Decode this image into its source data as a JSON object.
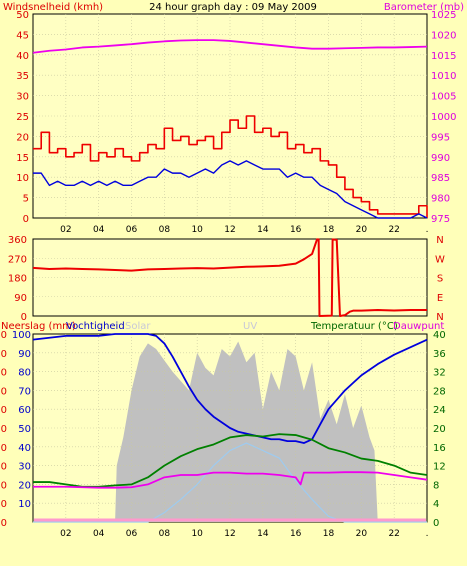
{
  "colors": {
    "background": "#ffffb9",
    "plot_bg": "#ffffc3",
    "grid": "#c8c8a0",
    "wind": "#ee0000",
    "gust": "#0000dd",
    "barometer": "#ee00ee",
    "direction": "#ee0000",
    "humidity": "#0000dd",
    "solar": "#c0c0c0",
    "uv": "#9ecbf0",
    "temperature": "#008000",
    "dewpoint": "#ee00ee",
    "rain": "#ff99cc",
    "text_red": "#dd0000",
    "text_blue": "#0000cc",
    "text_green": "#006600",
    "text_magenta": "#dd00dd",
    "text_dark": "#000000",
    "text_faint": "#c8c8d8"
  },
  "chart_data": [
    {
      "type": "line",
      "title": "24 hour graph day : 09 May 2009",
      "ylabel": "Windsnelheid (kmh)",
      "y2label": "Barometer (mb)",
      "ylim": [
        0,
        50
      ],
      "y2lim": [
        975,
        1025
      ],
      "yticks": [
        "0",
        "5",
        "10",
        "15",
        "20",
        "25",
        "30",
        "35",
        "40",
        "45",
        "50"
      ],
      "y2ticks": [
        "975",
        "980",
        "985",
        "990",
        "995",
        "1000",
        "1005",
        "1010",
        "1015",
        "1020",
        "1025"
      ],
      "xlim": [
        0,
        24
      ],
      "xticks": [
        "02",
        "04",
        "06",
        "08",
        "10",
        "12",
        "14",
        "16",
        "18",
        "20",
        "22",
        "."
      ],
      "grid": true,
      "series": [
        {
          "key": "wind",
          "axis": "left",
          "step": true,
          "x": [
            0,
            0.5,
            1,
            1.5,
            2,
            2.5,
            3,
            3.5,
            4,
            4.5,
            5,
            5.5,
            6,
            6.5,
            7,
            7.5,
            8,
            8.5,
            9,
            9.5,
            10,
            10.5,
            11,
            11.5,
            12,
            12.5,
            13,
            13.5,
            14,
            14.5,
            15,
            15.5,
            16,
            16.5,
            17,
            17.5,
            18,
            18.5,
            19,
            19.5,
            20,
            20.5,
            21,
            21.5,
            22,
            22.5,
            23,
            23.5,
            24
          ],
          "y": [
            17,
            21,
            16,
            17,
            15,
            16,
            18,
            14,
            16,
            15,
            17,
            15,
            14,
            16,
            18,
            17,
            22,
            19,
            20,
            18,
            19,
            20,
            17,
            21,
            24,
            22,
            25,
            21,
            22,
            20,
            21,
            17,
            18,
            16,
            17,
            14,
            13,
            10,
            7,
            5,
            4,
            2,
            1,
            1,
            1,
            1,
            1,
            3,
            0
          ]
        },
        {
          "key": "gust",
          "axis": "left",
          "x": [
            0,
            0.5,
            1,
            1.5,
            2,
            2.5,
            3,
            3.5,
            4,
            4.5,
            5,
            5.5,
            6,
            6.5,
            7,
            7.5,
            8,
            8.5,
            9,
            9.5,
            10,
            10.5,
            11,
            11.5,
            12,
            12.5,
            13,
            13.5,
            14,
            14.5,
            15,
            15.5,
            16,
            16.5,
            17,
            17.5,
            18,
            18.5,
            19,
            19.5,
            20,
            20.5,
            21,
            21.5,
            22,
            22.5,
            23,
            23.5,
            24
          ],
          "y": [
            11,
            11,
            8,
            9,
            8,
            8,
            9,
            8,
            9,
            8,
            9,
            8,
            8,
            9,
            10,
            10,
            12,
            11,
            11,
            10,
            11,
            12,
            11,
            13,
            14,
            13,
            14,
            13,
            12,
            12,
            12,
            10,
            11,
            10,
            10,
            8,
            7,
            6,
            4,
            3,
            2,
            1,
            0,
            0,
            0,
            0,
            0,
            1,
            0
          ]
        },
        {
          "key": "barometer",
          "axis": "right",
          "x": [
            0,
            1,
            2,
            3,
            4,
            5,
            6,
            7,
            8,
            9,
            10,
            11,
            12,
            13,
            14,
            15,
            16,
            17,
            18,
            19,
            20,
            21,
            22,
            23,
            24
          ],
          "y": [
            1015.5,
            1016,
            1016.3,
            1016.8,
            1017,
            1017.3,
            1017.6,
            1018,
            1018.3,
            1018.5,
            1018.6,
            1018.6,
            1018.4,
            1018,
            1017.6,
            1017.2,
            1016.8,
            1016.5,
            1016.5,
            1016.6,
            1016.7,
            1016.8,
            1016.8,
            1016.9,
            1017
          ]
        }
      ]
    },
    {
      "type": "line",
      "ylim": [
        0,
        360
      ],
      "yticks": [
        "0",
        "90",
        "180",
        "270",
        "360"
      ],
      "y2ticks": [
        "N",
        "W",
        "S",
        "E",
        "N"
      ],
      "xlim": [
        0,
        24
      ],
      "grid": true,
      "series": [
        {
          "key": "direction",
          "x": [
            0,
            1,
            2,
            3,
            4,
            5,
            6,
            7,
            8,
            9,
            10,
            11,
            12,
            13,
            14,
            15,
            16,
            16.5,
            17,
            17.3,
            17.4,
            17.45,
            18.2,
            18.25,
            18.5,
            18.7,
            19,
            19.3,
            19.5,
            20,
            21,
            22,
            23,
            24
          ],
          "y": [
            225,
            220,
            222,
            220,
            218,
            215,
            212,
            218,
            220,
            222,
            224,
            222,
            226,
            230,
            232,
            235,
            245,
            265,
            290,
            358,
            358,
            0,
            2,
            358,
            356,
            0,
            4,
            20,
            25,
            25,
            28,
            26,
            28,
            28
          ]
        }
      ]
    },
    {
      "type": "line",
      "ylabel": "Neerslag (mm)",
      "y3label": "Vochtigheid",
      "label_solar": "Solar",
      "label_uv": "UV",
      "y2label": "Temperatuur (°C)",
      "y4label": "Dauwpunt",
      "ylim": [
        0,
        100
      ],
      "yticks_rain": [
        "0",
        "0",
        "0",
        "0",
        "0",
        "0",
        "0",
        "0",
        "0",
        "0",
        "0"
      ],
      "yticks_hum": [
        "10",
        "20",
        "30",
        "40",
        "50",
        "60",
        "70",
        "80",
        "90",
        "100"
      ],
      "y2lim": [
        0,
        40
      ],
      "y2ticks": [
        "0",
        "4",
        "8",
        "12",
        "16",
        "20",
        "24",
        "28",
        "32",
        "36",
        "40"
      ],
      "xlim": [
        0,
        24
      ],
      "xticks": [
        "02",
        "04",
        "06",
        "08",
        "10",
        "12",
        "14",
        "16",
        "18",
        "20",
        "22",
        "."
      ],
      "grid": true,
      "series": [
        {
          "key": "humidity",
          "axis": "hum",
          "x": [
            0,
            1,
            2,
            3,
            4,
            5,
            6,
            7,
            7.5,
            8,
            8.5,
            9,
            9.5,
            10,
            10.5,
            11,
            11.5,
            12,
            12.5,
            13,
            13.5,
            14,
            14.5,
            15,
            15.5,
            16,
            16.5,
            17,
            17.5,
            18,
            18.5,
            19,
            19.5,
            20,
            21,
            22,
            23,
            24
          ],
          "y": [
            97,
            98,
            99,
            99,
            99,
            100,
            100,
            100,
            99,
            95,
            88,
            80,
            72,
            65,
            60,
            56,
            53,
            50,
            48,
            47,
            46,
            45,
            44,
            44,
            43,
            43,
            42,
            44,
            52,
            60,
            65,
            70,
            74,
            78,
            84,
            89,
            93,
            97
          ]
        },
        {
          "key": "solar",
          "axis": "hum",
          "area": true,
          "x": [
            0,
            5,
            5.1,
            5.5,
            6,
            6.5,
            7,
            7.5,
            8,
            8.5,
            9,
            9.5,
            10,
            10.5,
            11,
            11.5,
            12,
            12.5,
            13,
            13.5,
            14,
            14.5,
            15,
            15.5,
            16,
            16.5,
            17,
            17.5,
            18,
            18.5,
            19,
            19.5,
            20,
            20.5,
            20.8,
            21,
            24
          ],
          "y": [
            0,
            0,
            30,
            45,
            70,
            88,
            95,
            92,
            86,
            80,
            75,
            70,
            90,
            82,
            78,
            92,
            88,
            96,
            85,
            90,
            60,
            80,
            70,
            92,
            88,
            70,
            85,
            55,
            65,
            52,
            68,
            50,
            62,
            45,
            38,
            0,
            0
          ]
        },
        {
          "key": "uv",
          "axis": "hum",
          "x": [
            0,
            7,
            8,
            9,
            10,
            11,
            12,
            13,
            14,
            15,
            16,
            17,
            18,
            19,
            24
          ],
          "y": [
            0,
            0,
            5,
            12,
            20,
            30,
            38,
            42,
            38,
            34,
            22,
            12,
            3,
            0,
            0
          ]
        },
        {
          "key": "temperature",
          "axis": "temp",
          "x": [
            0,
            1,
            2,
            3,
            4,
            5,
            6,
            7,
            8,
            9,
            10,
            11,
            12,
            13,
            14,
            15,
            16,
            17,
            18,
            19,
            20,
            21,
            22,
            23,
            24
          ],
          "y": [
            8.5,
            8.5,
            8,
            7.5,
            7.5,
            7.8,
            8,
            9.5,
            12,
            14,
            15.5,
            16.5,
            18,
            18.5,
            18.2,
            18.7,
            18.5,
            17.5,
            15.7,
            14.8,
            13.5,
            13,
            12,
            10.5,
            10
          ]
        },
        {
          "key": "dewpoint",
          "axis": "temp",
          "x": [
            0,
            1,
            2,
            3,
            4,
            5,
            6,
            7,
            8,
            9,
            10,
            11,
            12,
            13,
            14,
            15,
            16,
            16.3,
            16.5,
            17,
            18,
            19,
            20,
            21,
            22,
            23,
            24
          ],
          "y": [
            7.5,
            7.5,
            7.5,
            7.4,
            7.3,
            7.3,
            7.4,
            8,
            9.5,
            10,
            10,
            10.5,
            10.5,
            10.3,
            10.3,
            10,
            9.5,
            8,
            10.5,
            10.5,
            10.5,
            10.6,
            10.6,
            10.5,
            10,
            9.5,
            9
          ]
        },
        {
          "key": "rain",
          "axis": "hum",
          "x": [
            0,
            24
          ],
          "y": [
            0,
            0
          ]
        }
      ]
    }
  ]
}
